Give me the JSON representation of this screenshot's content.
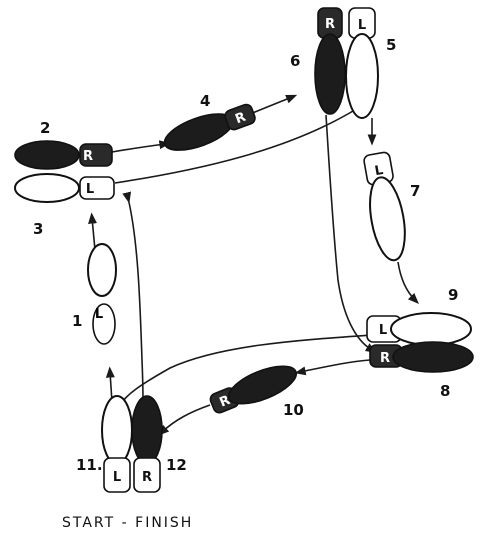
{
  "diagram": {
    "caption": "START - FINISH",
    "steps": [
      {
        "id": "1",
        "label": "1",
        "foot": "L"
      },
      {
        "id": "2",
        "label": "2",
        "foot": "R"
      },
      {
        "id": "3",
        "label": "3",
        "foot": "L"
      },
      {
        "id": "4",
        "label": "4",
        "foot": "R"
      },
      {
        "id": "5",
        "label": "5",
        "foot": "L"
      },
      {
        "id": "6",
        "label": "6",
        "foot": "R"
      },
      {
        "id": "7",
        "label": "7",
        "foot": "L"
      },
      {
        "id": "8",
        "label": "8",
        "foot": "R"
      },
      {
        "id": "9",
        "label": "9",
        "foot": "L"
      },
      {
        "id": "10",
        "label": "10",
        "foot": "R"
      },
      {
        "id": "11",
        "label": "11.",
        "foot": "L"
      },
      {
        "id": "12",
        "label": "12",
        "foot": "R"
      }
    ],
    "colors": {
      "left_foot": "#ffffff",
      "right_foot": "#1c1c1c",
      "ink": "#111111"
    }
  }
}
